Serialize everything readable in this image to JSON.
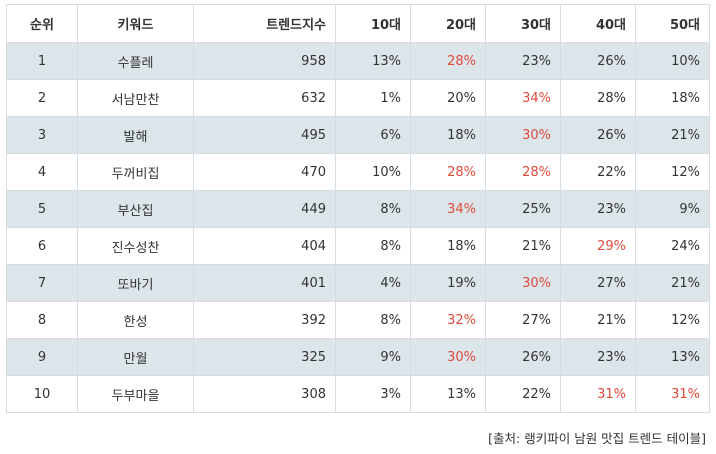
{
  "headers": [
    "순위",
    "키워드",
    "트렌드지수",
    "10대",
    "20대",
    "30대",
    "40대",
    "50대"
  ],
  "rows": [
    {
      "rank": "1",
      "keyword": "수플레",
      "index": "958",
      "ages": [
        {
          "v": "13%",
          "hl": false
        },
        {
          "v": "28%",
          "hl": true
        },
        {
          "v": "23%",
          "hl": false
        },
        {
          "v": "26%",
          "hl": false
        },
        {
          "v": "10%",
          "hl": false
        }
      ]
    },
    {
      "rank": "2",
      "keyword": "서남만찬",
      "index": "632",
      "ages": [
        {
          "v": "1%",
          "hl": false
        },
        {
          "v": "20%",
          "hl": false
        },
        {
          "v": "34%",
          "hl": true
        },
        {
          "v": "28%",
          "hl": false
        },
        {
          "v": "18%",
          "hl": false
        }
      ]
    },
    {
      "rank": "3",
      "keyword": "발해",
      "index": "495",
      "ages": [
        {
          "v": "6%",
          "hl": false
        },
        {
          "v": "18%",
          "hl": false
        },
        {
          "v": "30%",
          "hl": true
        },
        {
          "v": "26%",
          "hl": false
        },
        {
          "v": "21%",
          "hl": false
        }
      ]
    },
    {
      "rank": "4",
      "keyword": "두꺼비집",
      "index": "470",
      "ages": [
        {
          "v": "10%",
          "hl": false
        },
        {
          "v": "28%",
          "hl": true
        },
        {
          "v": "28%",
          "hl": true
        },
        {
          "v": "22%",
          "hl": false
        },
        {
          "v": "12%",
          "hl": false
        }
      ]
    },
    {
      "rank": "5",
      "keyword": "부산집",
      "index": "449",
      "ages": [
        {
          "v": "8%",
          "hl": false
        },
        {
          "v": "34%",
          "hl": true
        },
        {
          "v": "25%",
          "hl": false
        },
        {
          "v": "23%",
          "hl": false
        },
        {
          "v": "9%",
          "hl": false
        }
      ]
    },
    {
      "rank": "6",
      "keyword": "진수성찬",
      "index": "404",
      "ages": [
        {
          "v": "8%",
          "hl": false
        },
        {
          "v": "18%",
          "hl": false
        },
        {
          "v": "21%",
          "hl": false
        },
        {
          "v": "29%",
          "hl": true
        },
        {
          "v": "24%",
          "hl": false
        }
      ]
    },
    {
      "rank": "7",
      "keyword": "또바기",
      "index": "401",
      "ages": [
        {
          "v": "4%",
          "hl": false
        },
        {
          "v": "19%",
          "hl": false
        },
        {
          "v": "30%",
          "hl": true
        },
        {
          "v": "27%",
          "hl": false
        },
        {
          "v": "21%",
          "hl": false
        }
      ]
    },
    {
      "rank": "8",
      "keyword": "한성",
      "index": "392",
      "ages": [
        {
          "v": "8%",
          "hl": false
        },
        {
          "v": "32%",
          "hl": true
        },
        {
          "v": "27%",
          "hl": false
        },
        {
          "v": "21%",
          "hl": false
        },
        {
          "v": "12%",
          "hl": false
        }
      ]
    },
    {
      "rank": "9",
      "keyword": "만월",
      "index": "325",
      "ages": [
        {
          "v": "9%",
          "hl": false
        },
        {
          "v": "30%",
          "hl": true
        },
        {
          "v": "26%",
          "hl": false
        },
        {
          "v": "23%",
          "hl": false
        },
        {
          "v": "13%",
          "hl": false
        }
      ]
    },
    {
      "rank": "10",
      "keyword": "두부마을",
      "index": "308",
      "ages": [
        {
          "v": "3%",
          "hl": false
        },
        {
          "v": "13%",
          "hl": false
        },
        {
          "v": "22%",
          "hl": false
        },
        {
          "v": "31%",
          "hl": true
        },
        {
          "v": "31%",
          "hl": true
        }
      ]
    }
  ],
  "source": "[출처: 랭키파이 남원 맛집 트렌드 테이블]",
  "colors": {
    "highlight": "#e04a3a",
    "stripe": "#dce5ea",
    "border": "#d6dde2",
    "text": "#333333"
  }
}
